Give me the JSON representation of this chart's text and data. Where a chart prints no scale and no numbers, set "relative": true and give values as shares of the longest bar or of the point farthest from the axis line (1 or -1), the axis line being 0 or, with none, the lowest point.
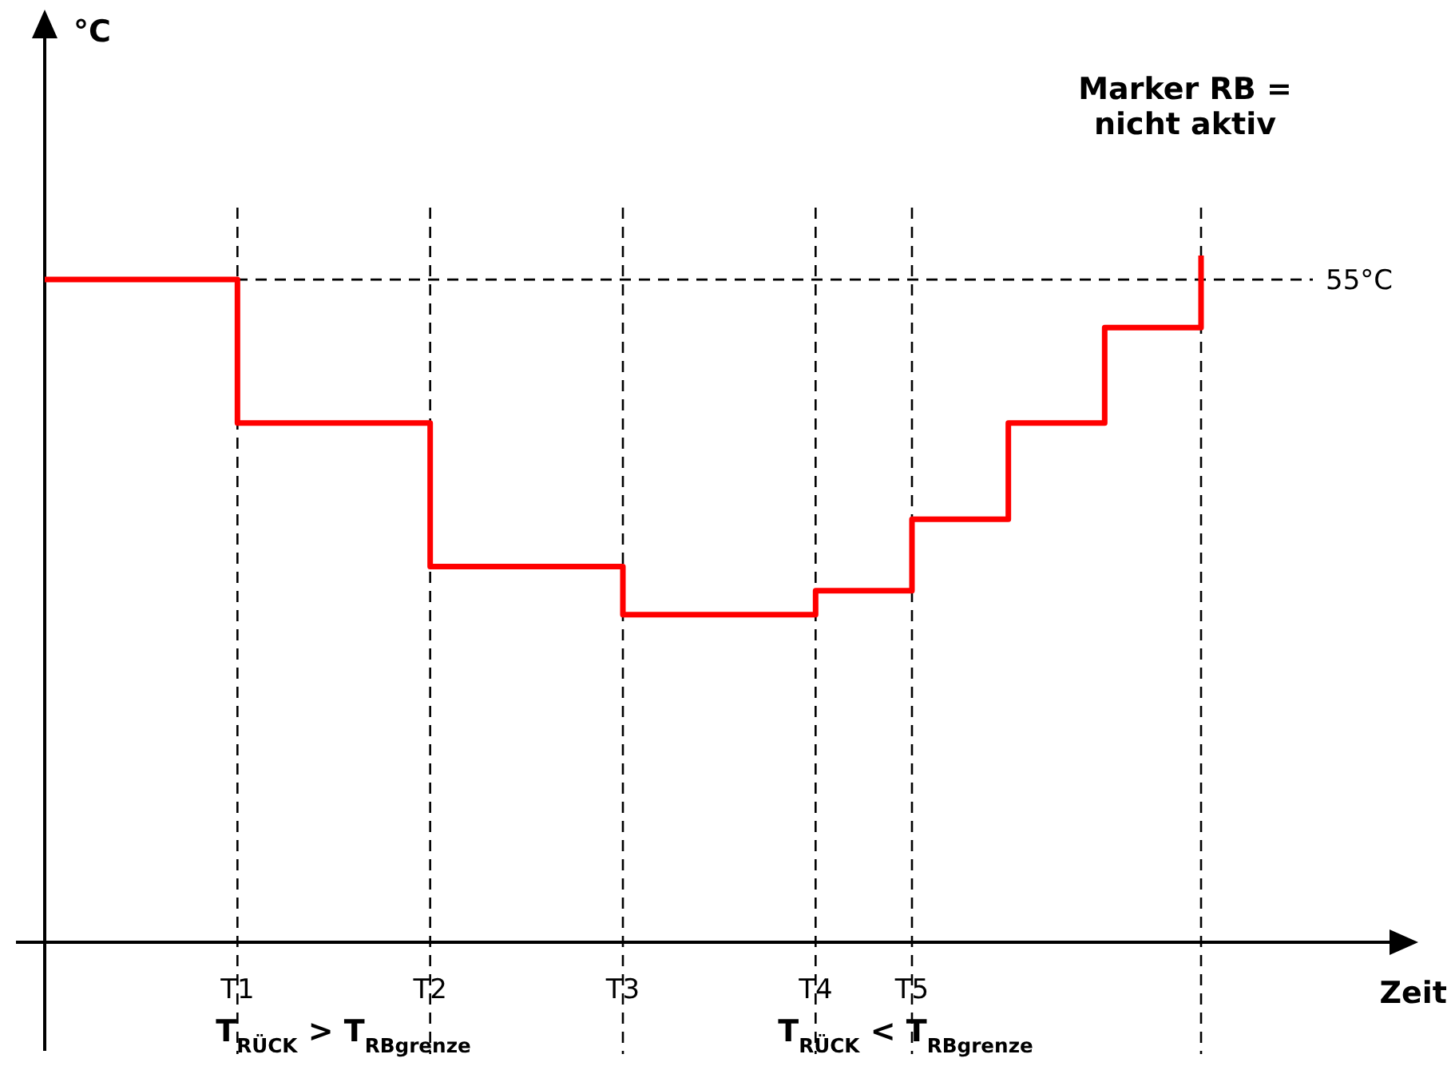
{
  "chart_data": {
    "type": "step",
    "xlabel": "Zeit",
    "relative": true,
    "categories": [
      null,
      null,
      "T1",
      null,
      "T2",
      null,
      "T3",
      null,
      "T4",
      "T5",
      null,
      null,
      null
    ],
    "series": [
      {
        "color": "#ff0000",
        "values": [
          0.965,
          0.965,
          0.756,
          0.756,
          0.547,
          0.547,
          0.477,
          0.477,
          0.512,
          0.616,
          0.756,
          0.895,
          1
        ]
      }
    ],
    "ref_lines": [
      {
        "axis": "y",
        "value": 0.965,
        "label": "55°C",
        "color": "#000000",
        "line_style": "dashed"
      }
    ],
    "annotations": [
      "Marker RB =\nnicht aktiv",
      "T$_{RÜCK}$ > T$_{RBgrenze}$",
      "T$_{RÜCK}$ < T$_{RBgrenze}$",
      "°C"
    ],
    "grid": "x",
    "line_style": "solid",
    "marker": "none"
  }
}
